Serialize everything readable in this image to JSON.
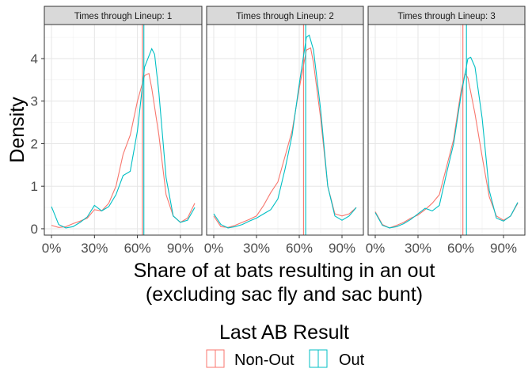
{
  "chart_data": {
    "type": "line",
    "subtype": "density",
    "facet_label_prefix": "Times through Lineup: ",
    "facets": [
      {
        "label": "Times through Lineup: 1",
        "series": [
          {
            "name": "Non-Out",
            "x": [
              0.0,
              0.05,
              0.1,
              0.15,
              0.2,
              0.25,
              0.3,
              0.35,
              0.4,
              0.45,
              0.5,
              0.55,
              0.6,
              0.65,
              0.68,
              0.7,
              0.75,
              0.8,
              0.85,
              0.9,
              0.95,
              1.0
            ],
            "y": [
              0.08,
              0.03,
              0.05,
              0.12,
              0.18,
              0.25,
              0.45,
              0.42,
              0.6,
              1.0,
              1.75,
              2.2,
              3.0,
              3.6,
              3.65,
              3.3,
              2.2,
              0.8,
              0.3,
              0.15,
              0.25,
              0.6
            ],
            "vline": 0.635
          },
          {
            "name": "Out",
            "x": [
              0.0,
              0.02,
              0.05,
              0.1,
              0.15,
              0.2,
              0.25,
              0.3,
              0.35,
              0.4,
              0.45,
              0.5,
              0.55,
              0.6,
              0.65,
              0.7,
              0.72,
              0.75,
              0.8,
              0.85,
              0.9,
              0.95,
              1.0
            ],
            "y": [
              0.52,
              0.35,
              0.1,
              0.02,
              0.05,
              0.15,
              0.28,
              0.55,
              0.42,
              0.52,
              0.8,
              1.25,
              1.35,
              2.3,
              3.8,
              4.23,
              4.1,
              3.2,
              1.2,
              0.3,
              0.15,
              0.2,
              0.5
            ],
            "vline": 0.645
          }
        ]
      },
      {
        "label": "Times through Lineup: 2",
        "series": [
          {
            "name": "Non-Out",
            "x": [
              0.0,
              0.05,
              0.1,
              0.15,
              0.2,
              0.25,
              0.3,
              0.35,
              0.4,
              0.45,
              0.5,
              0.55,
              0.6,
              0.65,
              0.68,
              0.7,
              0.75,
              0.8,
              0.85,
              0.9,
              0.95,
              1.0
            ],
            "y": [
              0.3,
              0.05,
              0.03,
              0.08,
              0.15,
              0.22,
              0.3,
              0.55,
              0.85,
              1.1,
              1.7,
              2.3,
              3.3,
              4.2,
              4.25,
              3.9,
              2.6,
              1.0,
              0.35,
              0.3,
              0.35,
              0.5
            ],
            "vline": 0.63
          },
          {
            "name": "Out",
            "x": [
              0.0,
              0.05,
              0.1,
              0.15,
              0.2,
              0.25,
              0.3,
              0.35,
              0.4,
              0.45,
              0.5,
              0.55,
              0.6,
              0.65,
              0.67,
              0.7,
              0.75,
              0.8,
              0.85,
              0.9,
              0.95,
              1.0
            ],
            "y": [
              0.35,
              0.1,
              0.02,
              0.05,
              0.1,
              0.18,
              0.25,
              0.35,
              0.45,
              0.7,
              1.4,
              2.2,
              3.4,
              4.5,
              4.55,
              4.2,
              2.8,
              1.0,
              0.3,
              0.2,
              0.3,
              0.5
            ],
            "vline": 0.645
          }
        ]
      },
      {
        "label": "Times through Lineup: 3",
        "series": [
          {
            "name": "Non-Out",
            "x": [
              0.0,
              0.05,
              0.1,
              0.15,
              0.2,
              0.25,
              0.3,
              0.35,
              0.4,
              0.45,
              0.5,
              0.55,
              0.6,
              0.63,
              0.65,
              0.7,
              0.75,
              0.8,
              0.85,
              0.9,
              0.95,
              1.0
            ],
            "y": [
              0.4,
              0.1,
              0.02,
              0.08,
              0.15,
              0.25,
              0.32,
              0.45,
              0.6,
              0.8,
              1.45,
              2.1,
              3.2,
              3.65,
              3.55,
              2.7,
              1.7,
              0.75,
              0.3,
              0.2,
              0.3,
              0.6
            ],
            "vline": 0.615
          },
          {
            "name": "Out",
            "x": [
              0.0,
              0.05,
              0.1,
              0.15,
              0.2,
              0.25,
              0.3,
              0.35,
              0.4,
              0.45,
              0.5,
              0.55,
              0.6,
              0.65,
              0.67,
              0.7,
              0.75,
              0.8,
              0.85,
              0.9,
              0.95,
              1.0
            ],
            "y": [
              0.38,
              0.08,
              0.02,
              0.05,
              0.12,
              0.22,
              0.35,
              0.48,
              0.42,
              0.55,
              1.3,
              2.0,
              3.1,
              4.0,
              4.03,
              3.8,
              2.6,
              0.9,
              0.25,
              0.18,
              0.3,
              0.62
            ],
            "vline": 0.64
          }
        ]
      }
    ],
    "xlabel_line1": "Share of at bats resulting in an out",
    "xlabel_line2": "(excluding sac fly and sac bunt)",
    "ylabel": "Density",
    "xlim": [
      -0.05,
      1.05
    ],
    "ylim": [
      -0.15,
      4.8
    ],
    "x_ticks": [
      0,
      0.3,
      0.6,
      0.9
    ],
    "x_tick_labels": [
      "0%",
      "30%",
      "60%",
      "90%"
    ],
    "y_ticks": [
      0,
      1,
      2,
      3,
      4
    ],
    "y_tick_labels": [
      "0",
      "1",
      "2",
      "3",
      "4"
    ],
    "grid": true,
    "legend": {
      "title": "Last AB Result",
      "position": "bottom",
      "entries": [
        "Non-Out",
        "Out"
      ]
    },
    "colors": {
      "Non-Out": "#F8766D",
      "Out": "#00BFC4"
    }
  }
}
